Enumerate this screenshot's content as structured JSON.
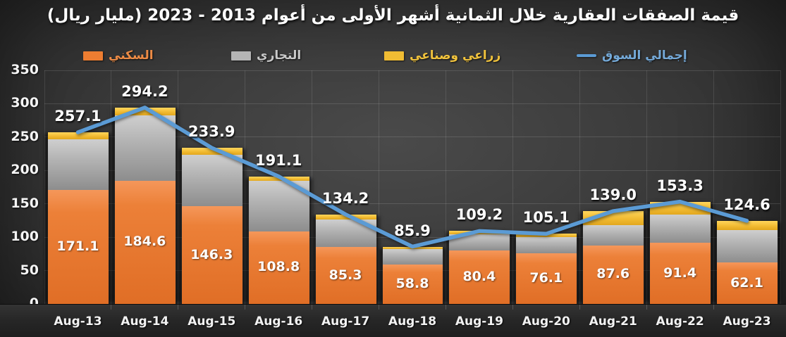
{
  "title": "قيمة الصفقات العقارية خلال الثمانية أشهر الأولى من أعوام 2013 - 2023 (مليار ريال)",
  "legend": [
    {
      "label": "السكني",
      "color": "#ED7D31",
      "text_color": "#ED8B45",
      "swatch": "box"
    },
    {
      "label": "التجاري",
      "color": "#B5B5B5",
      "text_color": "#C9C9C9",
      "swatch": "box"
    },
    {
      "label": "زراعي وصناعي",
      "color": "#F0BC33",
      "text_color": "#F0C23C",
      "swatch": "box"
    },
    {
      "label": "إجمالي السوق",
      "color": "#5B9BD5",
      "text_color": "#74A9D8",
      "swatch": "line"
    }
  ],
  "chart_data": {
    "type": "bar",
    "subtype": "stacked-bars-with-total-line",
    "title": "قيمة الصفقات العقارية خلال الثمانية أشهر الأولى من أعوام 2013 - 2023 (مليار ريال)",
    "categories": [
      "Aug-13",
      "Aug-14",
      "Aug-15",
      "Aug-16",
      "Aug-17",
      "Aug-18",
      "Aug-19",
      "Aug-20",
      "Aug-21",
      "Aug-22",
      "Aug-23"
    ],
    "series": [
      {
        "name": "السكني",
        "role": "residential",
        "chart": "bar",
        "color": "#ED7D31",
        "labels_visible": true,
        "estimated": false,
        "values": [
          171.1,
          184.6,
          146.3,
          108.8,
          85.3,
          58.8,
          80.4,
          76.1,
          87.6,
          91.4,
          62.1
        ]
      },
      {
        "name": "التجاري",
        "role": "commercial",
        "chart": "bar",
        "color": "#B5B5B5",
        "labels_visible": false,
        "estimated": true,
        "values": [
          76.0,
          97.6,
          77.6,
          75.8,
          40.9,
          23.1,
          23.8,
          24.0,
          30.4,
          42.9,
          48.5
        ]
      },
      {
        "name": "زراعي وصناعي",
        "role": "agri-industrial",
        "chart": "bar",
        "color": "#F0BC33",
        "labels_visible": false,
        "estimated": true,
        "values": [
          10.0,
          12.0,
          10.0,
          6.5,
          8.0,
          4.0,
          5.0,
          5.0,
          21.0,
          19.0,
          14.0
        ]
      },
      {
        "name": "إجمالي السوق",
        "role": "total-market",
        "chart": "line",
        "color": "#5B9BD5",
        "labels_visible": true,
        "estimated": false,
        "values": [
          257.1,
          294.2,
          233.9,
          191.1,
          134.2,
          85.9,
          109.2,
          105.1,
          139.0,
          153.3,
          124.6
        ]
      }
    ],
    "ylim": [
      0,
      350
    ],
    "y_ticks": [
      0,
      50,
      100,
      150,
      200,
      250,
      300,
      350
    ],
    "xlabel": "",
    "ylabel": "",
    "grid": true,
    "legend_position": "top",
    "stacking_note": "bars stacked bottom-to-top: residential (orange), commercial (gray), agri-industrial (yellow); blue line = market total; commercial and agri-industrial splits estimated from pixels (only totals and residential values are labeled)"
  }
}
